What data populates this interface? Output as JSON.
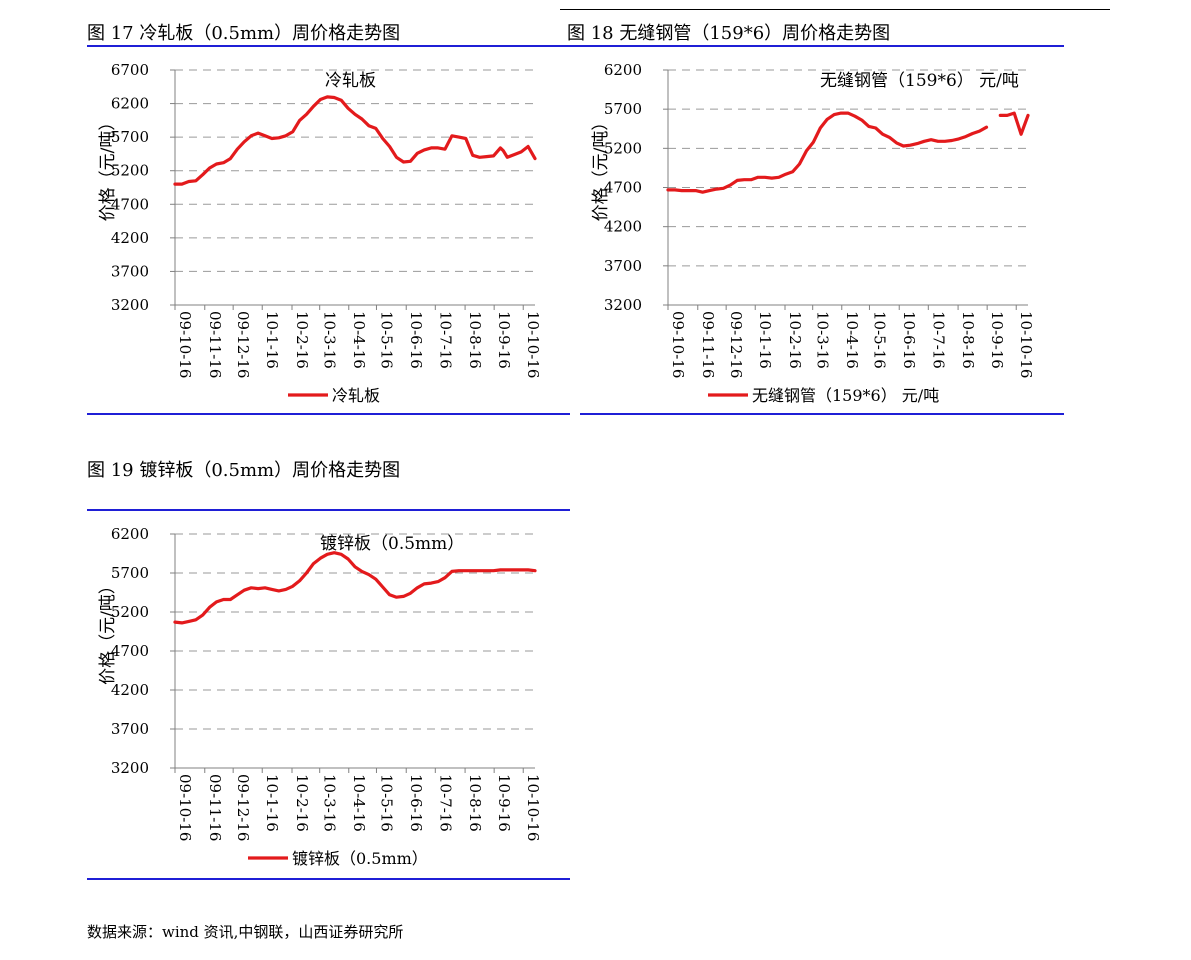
{
  "page": {
    "source": "数据来源：wind 资讯,中钢联，山西证券研究所"
  },
  "figures": [
    {
      "title": "图 17  冷轧板（0.5mm）周价格走势图"
    },
    {
      "title": "图 18 无缝钢管（159*6）周价格走势图"
    },
    {
      "title": "图 19  镀锌板（0.5mm）周价格走势图"
    }
  ],
  "colors": {
    "line": "#e31a1c",
    "rule": "#1f1fd6",
    "grid": "#9a9a9a"
  },
  "chart_data": [
    {
      "type": "line",
      "title": "冷轧板",
      "ylabel": "价格（元/吨）",
      "xlabel": "",
      "ylim": [
        3200,
        6700
      ],
      "yticks": [
        3200,
        3700,
        4200,
        4700,
        5200,
        5700,
        6200,
        6700
      ],
      "xlim": [
        0,
        52
      ],
      "ytick_labels": [
        "3200",
        "3700",
        "4200",
        "4700",
        "5200",
        "5700",
        "6200",
        "6700"
      ],
      "xtick_labels": [
        "09-10-16",
        "09-11-16",
        "09-12-16",
        "10-1-16",
        "10-2-16",
        "10-3-16",
        "10-4-16",
        "10-5-16",
        "10-6-16",
        "10-7-16",
        "10-8-16",
        "10-9-16",
        "10-10-16"
      ],
      "xtick_positions": [
        0,
        4.3,
        8.4,
        12.6,
        16.9,
        20.9,
        25.1,
        29.1,
        33.4,
        37.6,
        41.9,
        46.1,
        50.3
      ],
      "grid": "horizontal dashed",
      "legend": "bottom",
      "series": [
        {
          "name": "冷轧板",
          "x": [
            0,
            1,
            2,
            3,
            4,
            5,
            6,
            7,
            8,
            9,
            10,
            11,
            12,
            13,
            14,
            15,
            16,
            17,
            18,
            19,
            20,
            21,
            22,
            23,
            24,
            25,
            26,
            27,
            28,
            29,
            30,
            31,
            32,
            33,
            34,
            35,
            36,
            37,
            38,
            39,
            40,
            41,
            42,
            43,
            44,
            45,
            46,
            47,
            47.4,
            48,
            49,
            50,
            51,
            52
          ],
          "values": [
            5000,
            5000,
            5040,
            5050,
            5140,
            5240,
            5300,
            5320,
            5380,
            5520,
            5630,
            5720,
            5760,
            5720,
            5680,
            5690,
            5720,
            5780,
            5950,
            6040,
            6160,
            6260,
            6300,
            6290,
            6250,
            6130,
            6040,
            5970,
            5870,
            5830,
            5680,
            5560,
            5400,
            5330,
            5340,
            5460,
            5510,
            5540,
            5540,
            5520,
            5720,
            5700,
            5680,
            5430,
            5400,
            5410,
            5420,
            5540,
            5500,
            5400,
            5440,
            5480,
            5560,
            5380
          ]
        }
      ]
    },
    {
      "type": "line",
      "title": "无缝钢管（159*6）  元/吨",
      "ylabel": "价格（元/吨）",
      "xlabel": "",
      "ylim": [
        3200,
        6200
      ],
      "yticks": [
        3200,
        3700,
        4200,
        4700,
        5200,
        5700,
        6200
      ],
      "xlim": [
        0,
        52
      ],
      "ytick_labels": [
        "3200",
        "3700",
        "4200",
        "4700",
        "5200",
        "5700",
        "6200"
      ],
      "xtick_labels": [
        "09-10-16",
        "09-11-16",
        "09-12-16",
        "10-1-16",
        "10-2-16",
        "10-3-16",
        "10-4-16",
        "10-5-16",
        "10-6-16",
        "10-7-16",
        "10-8-16",
        "10-9-16",
        "10-10-16"
      ],
      "xtick_positions": [
        0,
        4.3,
        8.4,
        12.6,
        16.9,
        20.9,
        25.1,
        29.1,
        33.4,
        37.6,
        41.9,
        46.1,
        50.3
      ],
      "grid": "horizontal dashed",
      "legend": "bottom",
      "series": [
        {
          "name": "无缝钢管（159*6）  元/吨",
          "segments": [
            {
              "x": [
                0,
                1,
                2,
                3,
                4,
                5,
                6,
                7,
                8,
                9,
                10,
                11,
                12,
                13,
                14,
                15,
                16,
                17,
                18,
                19,
                20,
                21,
                22,
                23,
                24,
                25,
                26,
                27,
                28,
                29,
                30,
                31,
                32,
                33,
                34,
                35,
                36,
                37,
                38,
                39,
                40,
                41,
                42,
                43,
                44,
                45,
                46
              ],
              "values": [
                4670,
                4670,
                4660,
                4660,
                4660,
                4640,
                4660,
                4680,
                4690,
                4730,
                4790,
                4800,
                4800,
                4830,
                4830,
                4820,
                4830,
                4870,
                4900,
                5000,
                5170,
                5280,
                5460,
                5570,
                5630,
                5650,
                5650,
                5610,
                5560,
                5480,
                5460,
                5380,
                5340,
                5270,
                5230,
                5240,
                5260,
                5290,
                5310,
                5290,
                5290,
                5300,
                5320,
                5350,
                5390,
                5420,
                5470
              ]
            },
            {
              "x": [
                48,
                49,
                50,
                51,
                52
              ],
              "values": [
                5620,
                5620,
                5650,
                5380,
                5620
              ]
            }
          ]
        }
      ]
    },
    {
      "type": "line",
      "title": "镀锌板（0.5mm）",
      "ylabel": "价格（元/吨）",
      "xlabel": "",
      "ylim": [
        3200,
        6200
      ],
      "yticks": [
        3200,
        3700,
        4200,
        4700,
        5200,
        5700,
        6200
      ],
      "xlim": [
        0,
        52
      ],
      "ytick_labels": [
        "3200",
        "3700",
        "4200",
        "4700",
        "5200",
        "5700",
        "6200"
      ],
      "xtick_labels": [
        "09-10-16",
        "09-11-16",
        "09-12-16",
        "10-1-16",
        "10-2-16",
        "10-3-16",
        "10-4-16",
        "10-5-16",
        "10-6-16",
        "10-7-16",
        "10-8-16",
        "10-9-16",
        "10-10-16"
      ],
      "xtick_positions": [
        0,
        4.3,
        8.4,
        12.6,
        16.9,
        20.9,
        25.1,
        29.1,
        33.4,
        37.6,
        41.9,
        46.1,
        50.3
      ],
      "grid": "horizontal dashed",
      "legend": "bottom",
      "series": [
        {
          "name": "镀锌板（0.5mm）",
          "x": [
            0,
            1,
            2,
            3,
            4,
            5,
            6,
            7,
            8,
            9,
            10,
            11,
            12,
            13,
            14,
            15,
            16,
            17,
            18,
            19,
            20,
            21,
            22,
            23,
            24,
            25,
            26,
            27,
            28,
            29,
            30,
            31,
            32,
            33,
            34,
            35,
            36,
            37,
            38,
            39,
            40,
            41,
            42,
            43,
            44,
            45,
            46,
            47,
            48,
            49,
            50,
            51,
            52
          ],
          "values": [
            5070,
            5060,
            5080,
            5100,
            5160,
            5260,
            5330,
            5360,
            5360,
            5420,
            5480,
            5510,
            5500,
            5510,
            5490,
            5470,
            5490,
            5530,
            5600,
            5700,
            5820,
            5890,
            5940,
            5960,
            5940,
            5880,
            5780,
            5720,
            5680,
            5620,
            5520,
            5420,
            5390,
            5400,
            5440,
            5510,
            5560,
            5570,
            5590,
            5640,
            5720,
            5730,
            5730,
            5730,
            5730,
            5730,
            5730,
            5740,
            5740,
            5740,
            5740,
            5740,
            5730
          ]
        }
      ]
    }
  ]
}
